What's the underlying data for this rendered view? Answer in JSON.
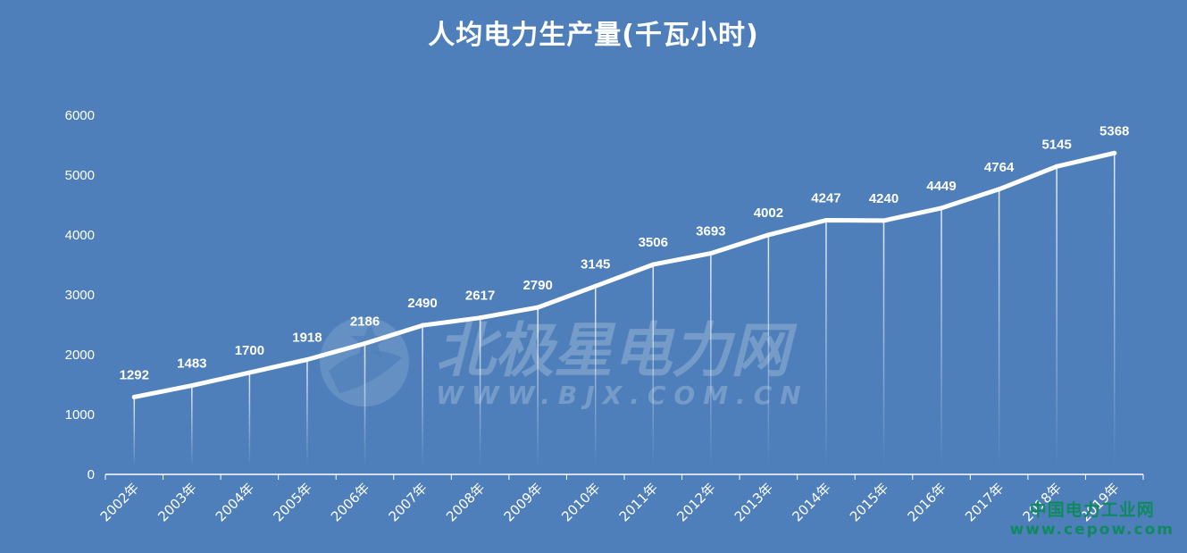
{
  "chart_data": {
    "type": "line",
    "title": "人均电力生产量(千瓦小时)",
    "categories": [
      "2002年",
      "2003年",
      "2004年",
      "2005年",
      "2006年",
      "2007年",
      "2008年",
      "2009年",
      "2010年",
      "2011年",
      "2012年",
      "2013年",
      "2014年",
      "2015年",
      "2016年",
      "2017年",
      "2018年",
      "2019年"
    ],
    "values": [
      1292,
      1483,
      1700,
      1918,
      2186,
      2490,
      2617,
      2790,
      3145,
      3506,
      3693,
      4002,
      4247,
      4240,
      4449,
      4764,
      5145,
      5368
    ],
    "ylim": [
      0,
      6000
    ],
    "yticks": [
      0,
      1000,
      2000,
      3000,
      4000,
      5000,
      6000
    ],
    "data_labels": true,
    "grid": false,
    "line_color": "#ffffff",
    "background_color": "#4e7fba"
  },
  "watermarks": {
    "bjx_name": "北极星电力网",
    "bjx_url": "WWW.BJX.COM.CN",
    "cepow_name": "中国电力工业网",
    "cepow_url": "www.cepow.com"
  }
}
